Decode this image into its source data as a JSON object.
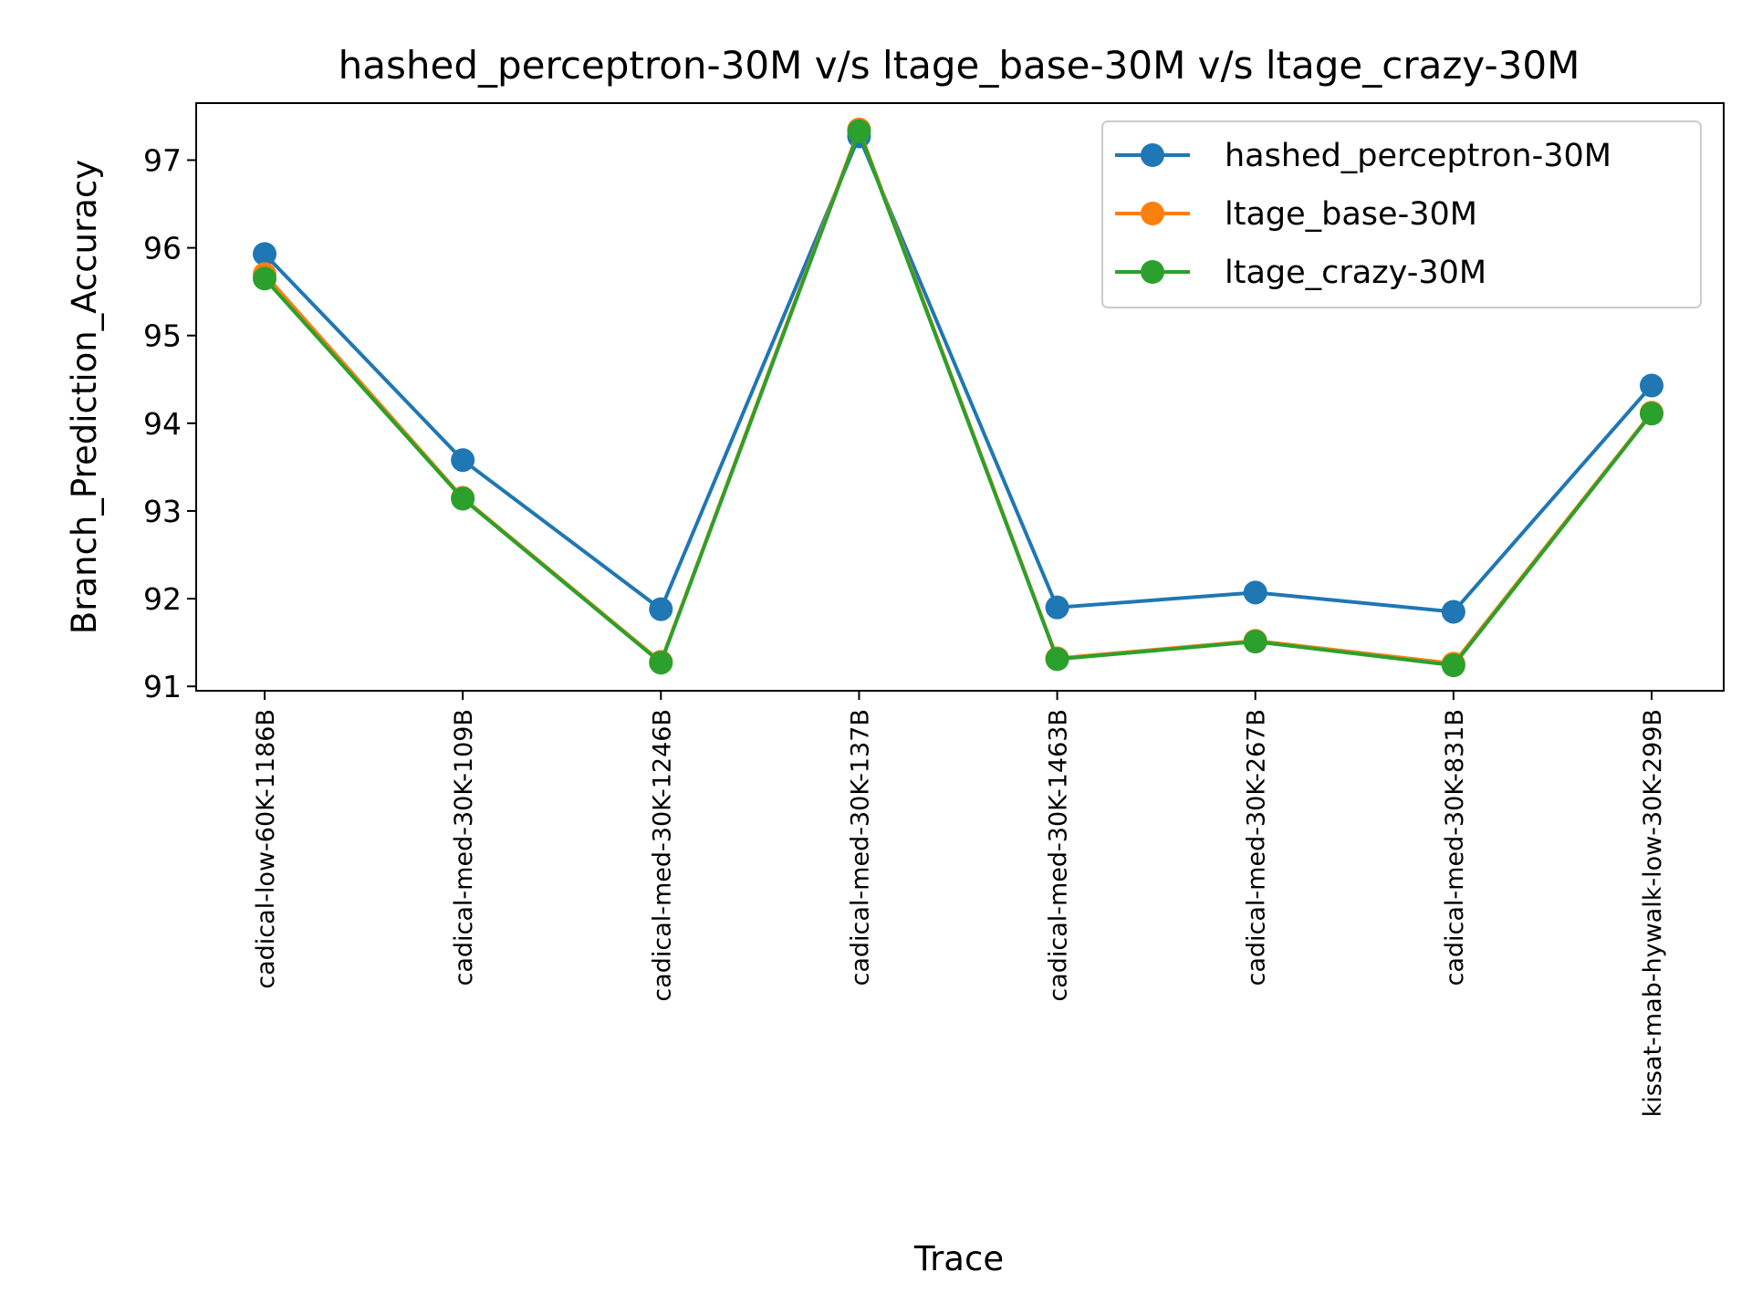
{
  "chart_data": {
    "type": "line",
    "title": "hashed_perceptron-30M v/s ltage_base-30M v/s ltage_crazy-30M",
    "xlabel": "Trace",
    "ylabel": "Branch_Prediction_Accuracy",
    "categories": [
      "cadical-low-60K-1186B",
      "cadical-med-30K-109B",
      "cadical-med-30K-1246B",
      "cadical-med-30K-137B",
      "cadical-med-30K-1463B",
      "cadical-med-30K-267B",
      "cadical-med-30K-831B",
      "kissat-mab-hywalk-low-30K-299B"
    ],
    "yticks": [
      "91",
      "92",
      "93",
      "94",
      "95",
      "96",
      "97"
    ],
    "ylim": [
      90.95,
      97.65
    ],
    "grid": false,
    "legend_position": "top-right",
    "series": [
      {
        "name": "hashed_perceptron-30M",
        "color": "#1f77b4",
        "values": [
          95.93,
          93.58,
          91.88,
          97.27,
          91.9,
          92.07,
          91.85,
          94.43
        ]
      },
      {
        "name": "ltage_base-30M",
        "color": "#ff7f0e",
        "values": [
          95.7,
          93.15,
          91.28,
          97.35,
          91.32,
          91.52,
          91.26,
          94.12
        ]
      },
      {
        "name": "ltage_crazy-30M",
        "color": "#2ca02c",
        "values": [
          95.65,
          93.14,
          91.27,
          97.33,
          91.31,
          91.51,
          91.24,
          94.11
        ]
      }
    ]
  }
}
